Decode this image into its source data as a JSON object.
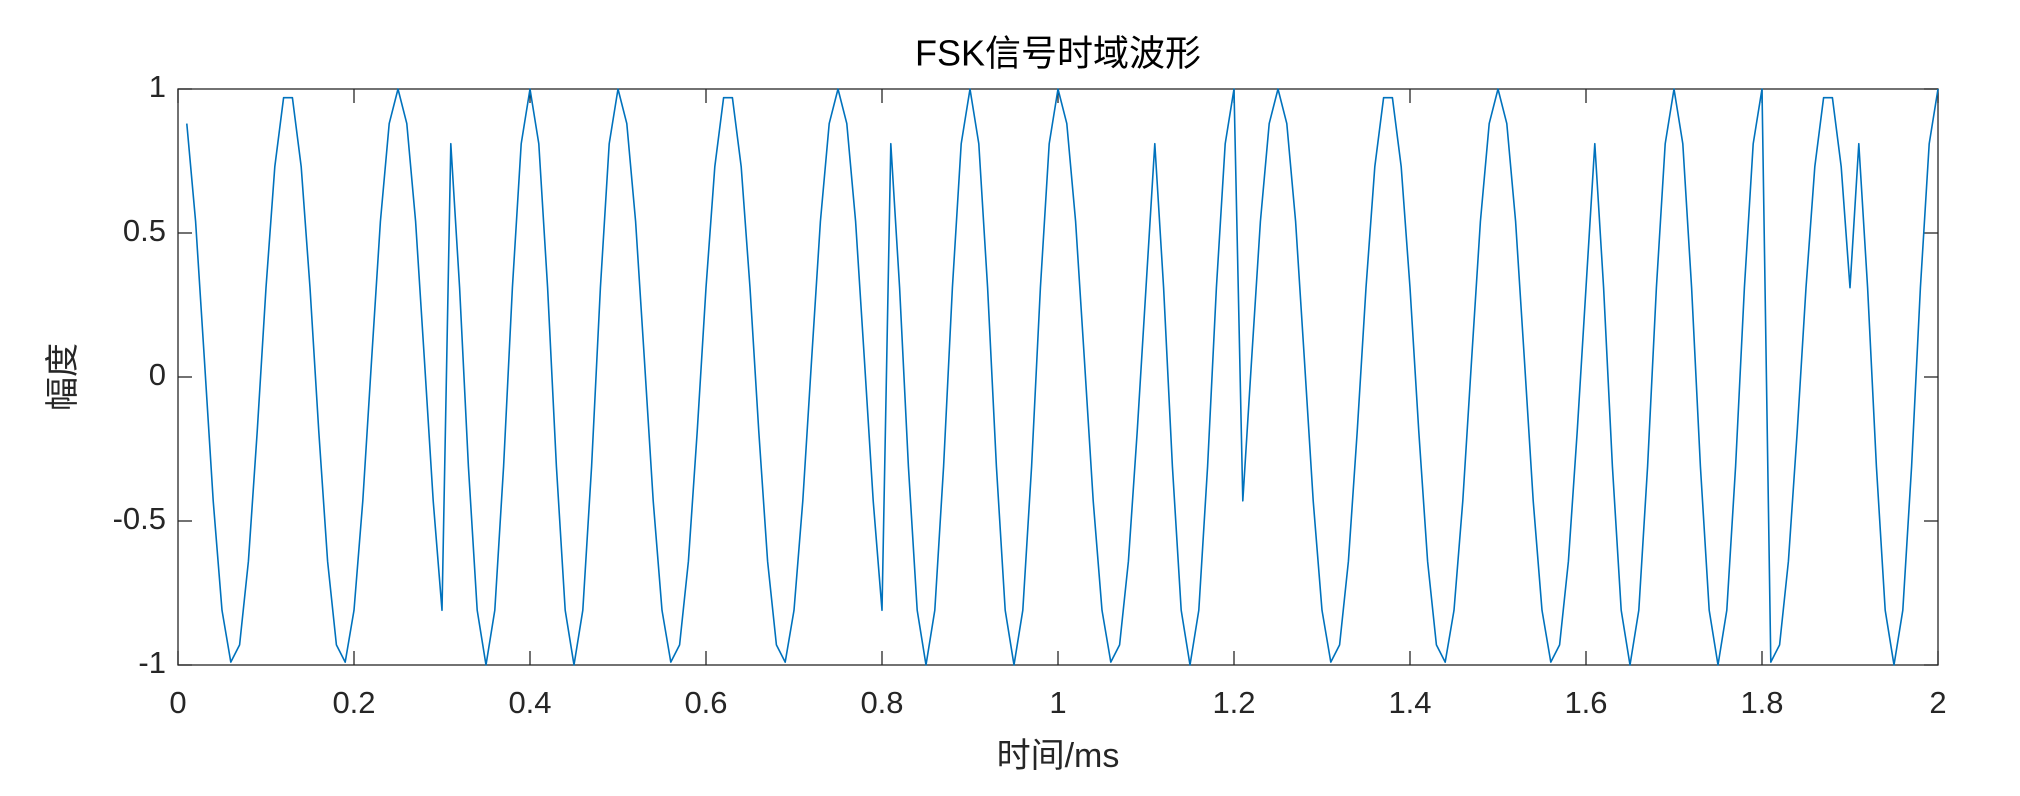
{
  "chart_data": {
    "type": "line",
    "title": "FSK信号时域波形",
    "xlabel": "时间/ms",
    "ylabel": "幅度",
    "color": "#0072bd",
    "x": [
      0.01,
      0.02,
      0.03,
      0.04,
      0.05,
      0.06,
      0.07,
      0.08,
      0.09,
      0.1,
      0.11,
      0.12,
      0.13,
      0.14,
      0.15,
      0.16,
      0.17,
      0.18,
      0.19,
      0.2,
      0.21,
      0.22,
      0.23,
      0.24,
      0.25,
      0.26,
      0.27,
      0.28,
      0.29,
      0.3,
      0.31,
      0.32,
      0.33,
      0.34,
      0.35,
      0.36,
      0.37,
      0.38,
      0.39,
      0.4,
      0.41,
      0.42,
      0.43,
      0.44,
      0.45,
      0.46,
      0.47,
      0.48,
      0.49,
      0.5,
      0.51,
      0.52,
      0.53,
      0.54,
      0.55,
      0.56,
      0.57,
      0.58,
      0.59,
      0.6,
      0.61,
      0.62,
      0.63,
      0.64,
      0.65,
      0.66,
      0.67,
      0.68,
      0.69,
      0.7,
      0.71,
      0.72,
      0.73,
      0.74,
      0.75,
      0.76,
      0.77,
      0.78,
      0.79,
      0.8,
      0.81,
      0.82,
      0.83,
      0.84,
      0.85,
      0.86,
      0.87,
      0.88,
      0.89,
      0.9,
      0.91,
      0.92,
      0.93,
      0.94,
      0.95,
      0.96,
      0.97,
      0.98,
      0.99,
      1.0,
      1.01,
      1.02,
      1.03,
      1.04,
      1.05,
      1.06,
      1.07,
      1.08,
      1.09,
      1.1,
      1.11,
      1.12,
      1.13,
      1.14,
      1.15,
      1.16,
      1.17,
      1.18,
      1.19,
      1.2,
      1.21,
      1.22,
      1.23,
      1.24,
      1.25,
      1.26,
      1.27,
      1.28,
      1.29,
      1.3,
      1.31,
      1.32,
      1.33,
      1.34,
      1.35,
      1.36,
      1.37,
      1.38,
      1.39,
      1.4,
      1.41,
      1.42,
      1.43,
      1.44,
      1.45,
      1.46,
      1.47,
      1.48,
      1.49,
      1.5,
      1.51,
      1.52,
      1.53,
      1.54,
      1.55,
      1.56,
      1.57,
      1.58,
      1.59,
      1.6,
      1.61,
      1.62,
      1.63,
      1.64,
      1.65,
      1.66,
      1.67,
      1.68,
      1.69,
      1.7,
      1.71,
      1.72,
      1.73,
      1.74,
      1.75,
      1.76,
      1.77,
      1.78,
      1.79,
      1.8,
      1.81,
      1.82,
      1.83,
      1.84,
      1.85,
      1.86,
      1.87,
      1.88,
      1.89,
      1.9,
      1.91,
      1.92,
      1.93,
      1.94,
      1.95,
      1.96,
      1.97,
      1.98,
      1.99,
      2.0
    ],
    "values": [
      0.88,
      0.54,
      0.06,
      -0.43,
      -0.81,
      -0.99,
      -0.93,
      -0.64,
      -0.19,
      0.31,
      0.73,
      0.97,
      0.97,
      0.73,
      0.31,
      -0.19,
      -0.64,
      -0.93,
      -0.99,
      -0.81,
      -0.43,
      0.06,
      0.54,
      0.88,
      1,
      0.88,
      0.54,
      0.06,
      -0.43,
      -0.81,
      0.81,
      0.31,
      -0.31,
      -0.81,
      -1,
      -0.81,
      -0.31,
      0.31,
      0.81,
      1,
      0.81,
      0.31,
      -0.31,
      -0.81,
      -1,
      -0.81,
      -0.31,
      0.31,
      0.81,
      1,
      0.88,
      0.54,
      0.06,
      -0.43,
      -0.81,
      -0.99,
      -0.93,
      -0.64,
      -0.19,
      0.31,
      0.73,
      0.97,
      0.97,
      0.73,
      0.31,
      -0.19,
      -0.64,
      -0.93,
      -0.99,
      -0.81,
      -0.43,
      0.06,
      0.54,
      0.88,
      1,
      0.88,
      0.54,
      0.06,
      -0.43,
      -0.81,
      0.81,
      0.31,
      -0.31,
      -0.81,
      -1,
      -0.81,
      -0.31,
      0.31,
      0.81,
      1,
      0.81,
      0.31,
      -0.31,
      -0.81,
      -1,
      -0.81,
      -0.31,
      0.31,
      0.81,
      1,
      0.88,
      0.54,
      0.06,
      -0.43,
      -0.81,
      -0.99,
      -0.93,
      -0.64,
      -0.19,
      0.31,
      0.81,
      0.31,
      -0.31,
      -0.81,
      -1,
      -0.81,
      -0.31,
      0.31,
      0.81,
      1,
      -0.43,
      0.06,
      0.54,
      0.88,
      1,
      0.88,
      0.54,
      0.06,
      -0.43,
      -0.81,
      -0.99,
      -0.93,
      -0.64,
      -0.19,
      0.31,
      0.73,
      0.97,
      0.97,
      0.73,
      0.31,
      -0.19,
      -0.64,
      -0.93,
      -0.99,
      -0.81,
      -0.43,
      0.06,
      0.54,
      0.88,
      1,
      0.88,
      0.54,
      0.06,
      -0.43,
      -0.81,
      -0.99,
      -0.93,
      -0.64,
      -0.19,
      0.31,
      0.81,
      0.31,
      -0.31,
      -0.81,
      -1,
      -0.81,
      -0.31,
      0.31,
      0.81,
      1,
      0.81,
      0.31,
      -0.31,
      -0.81,
      -1,
      -0.81,
      -0.31,
      0.31,
      0.81,
      1,
      -0.99,
      -0.93,
      -0.64,
      -0.19,
      0.31,
      0.73,
      0.97,
      0.97,
      0.73,
      0.31,
      0.81,
      0.31,
      -0.31,
      -0.81,
      -1,
      -0.81,
      -0.31,
      0.31,
      0.81,
      1
    ],
    "xlim": [
      0,
      2
    ],
    "xticks": [
      0,
      0.2,
      0.4,
      0.6,
      0.8,
      1,
      1.2,
      1.4,
      1.6,
      1.8,
      2
    ],
    "ylim": [
      -1,
      1
    ],
    "yticks": [
      -1,
      -0.5,
      0,
      0.5,
      1
    ],
    "grid": false
  }
}
